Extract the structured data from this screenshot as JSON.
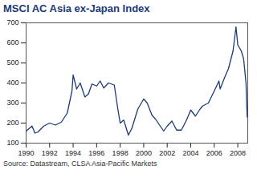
{
  "chart_data": {
    "type": "line",
    "title": "MSCI AC Asia ex-Japan Index",
    "source": "Source: Datastream, CLSA Asia-Pacific Markets",
    "x": [
      1990.0,
      1990.5,
      1990.75,
      1991.0,
      1991.5,
      1992.0,
      1992.5,
      1993.0,
      1993.5,
      1993.9,
      1994.0,
      1994.3,
      1994.6,
      1995.0,
      1995.3,
      1995.6,
      1996.0,
      1996.3,
      1996.6,
      1997.0,
      1997.5,
      1997.8,
      1998.0,
      1998.3,
      1998.7,
      1999.0,
      1999.5,
      2000.0,
      2000.3,
      2000.7,
      2001.0,
      2001.7,
      2002.0,
      2002.4,
      2002.8,
      2003.2,
      2003.6,
      2004.0,
      2004.4,
      2004.8,
      2005.0,
      2005.5,
      2006.0,
      2006.4,
      2006.5,
      2006.9,
      2007.2,
      2007.6,
      2007.85,
      2008.0,
      2008.3,
      2008.5,
      2008.7,
      2008.8
    ],
    "values": [
      160,
      185,
      150,
      155,
      185,
      200,
      190,
      205,
      250,
      360,
      440,
      370,
      400,
      330,
      345,
      395,
      385,
      410,
      375,
      400,
      390,
      270,
      200,
      215,
      140,
      175,
      270,
      320,
      300,
      240,
      220,
      160,
      185,
      210,
      165,
      165,
      210,
      265,
      235,
      270,
      285,
      300,
      360,
      410,
      370,
      430,
      470,
      560,
      680,
      590,
      560,
      520,
      400,
      230
    ],
    "color": "#1b3a7a",
    "xlim": [
      1990,
      2008.85
    ],
    "ylim": [
      100,
      700
    ],
    "xticks": [
      1990,
      1992,
      1994,
      1996,
      1998,
      2000,
      2002,
      2004,
      2006,
      2008
    ],
    "yticks": [
      100,
      200,
      300,
      400,
      500,
      600,
      700
    ],
    "grid": false
  }
}
